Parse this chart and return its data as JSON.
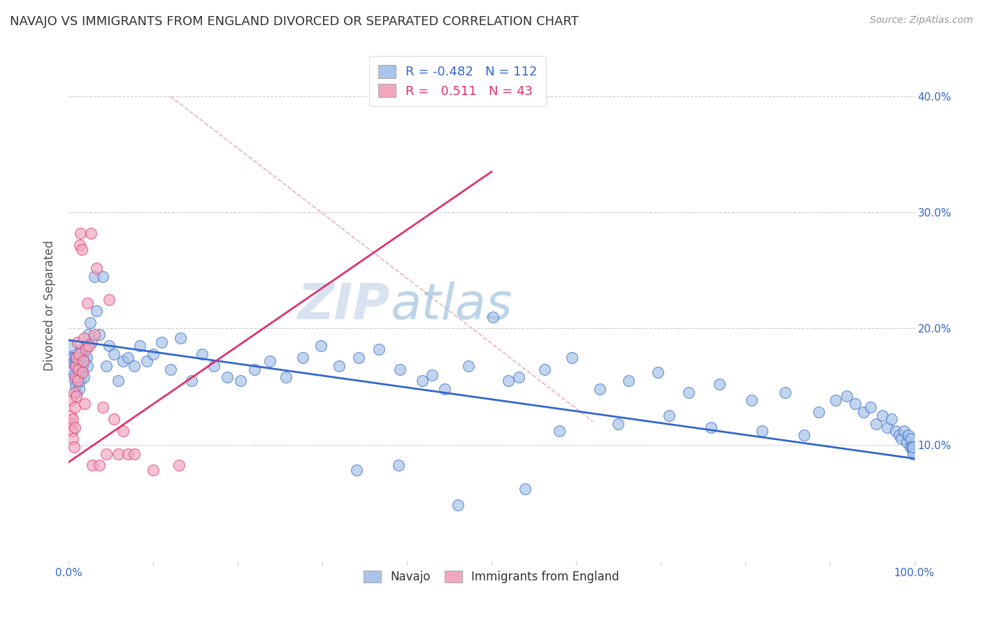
{
  "title": "NAVAJO VS IMMIGRANTS FROM ENGLAND DIVORCED OR SEPARATED CORRELATION CHART",
  "source": "Source: ZipAtlas.com",
  "ylabel": "Divorced or Separated",
  "ytick_labels": [
    "10.0%",
    "20.0%",
    "30.0%",
    "40.0%"
  ],
  "ytick_values": [
    0.1,
    0.2,
    0.3,
    0.4
  ],
  "xlim": [
    0.0,
    1.0
  ],
  "ylim": [
    0.0,
    0.44
  ],
  "navajo_color": "#a8c4e8",
  "england_color": "#f0a8bc",
  "navajo_line_color": "#3366cc",
  "england_line_color": "#e03070",
  "diagonal_line_color": "#cccccc",
  "background_color": "#ffffff",
  "navajo_line_x": [
    0.0,
    1.0
  ],
  "navajo_line_y": [
    0.19,
    0.088
  ],
  "england_line_x": [
    0.0,
    0.5
  ],
  "england_line_y": [
    0.085,
    0.335
  ],
  "diagonal_line_x": [
    0.12,
    0.62
  ],
  "diagonal_line_y": [
    0.4,
    0.12
  ],
  "navajo_scatter_x": [
    0.002,
    0.003,
    0.004,
    0.005,
    0.005,
    0.006,
    0.007,
    0.007,
    0.008,
    0.008,
    0.009,
    0.009,
    0.01,
    0.01,
    0.011,
    0.011,
    0.012,
    0.012,
    0.013,
    0.013,
    0.014,
    0.015,
    0.015,
    0.016,
    0.017,
    0.018,
    0.019,
    0.02,
    0.021,
    0.022,
    0.023,
    0.025,
    0.027,
    0.03,
    0.033,
    0.036,
    0.04,
    0.044,
    0.048,
    0.053,
    0.058,
    0.064,
    0.07,
    0.077,
    0.084,
    0.092,
    0.1,
    0.11,
    0.12,
    0.132,
    0.145,
    0.158,
    0.172,
    0.187,
    0.203,
    0.22,
    0.238,
    0.257,
    0.277,
    0.298,
    0.32,
    0.343,
    0.367,
    0.392,
    0.418,
    0.445,
    0.473,
    0.502,
    0.532,
    0.563,
    0.595,
    0.628,
    0.662,
    0.697,
    0.733,
    0.77,
    0.808,
    0.847,
    0.887,
    0.907,
    0.92,
    0.93,
    0.94,
    0.948,
    0.955,
    0.962,
    0.968,
    0.973,
    0.978,
    0.982,
    0.985,
    0.988,
    0.991,
    0.993,
    0.995,
    0.996,
    0.997,
    0.998,
    0.999,
    0.999,
    0.43,
    0.52,
    0.58,
    0.65,
    0.71,
    0.76,
    0.82,
    0.87,
    0.34,
    0.39,
    0.46,
    0.54
  ],
  "navajo_scatter_y": [
    0.185,
    0.175,
    0.165,
    0.175,
    0.17,
    0.16,
    0.155,
    0.17,
    0.15,
    0.175,
    0.145,
    0.168,
    0.155,
    0.172,
    0.158,
    0.165,
    0.175,
    0.148,
    0.162,
    0.178,
    0.155,
    0.165,
    0.182,
    0.168,
    0.175,
    0.158,
    0.172,
    0.185,
    0.175,
    0.168,
    0.195,
    0.205,
    0.188,
    0.245,
    0.215,
    0.195,
    0.245,
    0.168,
    0.185,
    0.178,
    0.155,
    0.172,
    0.175,
    0.168,
    0.185,
    0.172,
    0.178,
    0.188,
    0.165,
    0.192,
    0.155,
    0.178,
    0.168,
    0.158,
    0.155,
    0.165,
    0.172,
    0.158,
    0.175,
    0.185,
    0.168,
    0.175,
    0.182,
    0.165,
    0.155,
    0.148,
    0.168,
    0.21,
    0.158,
    0.165,
    0.175,
    0.148,
    0.155,
    0.162,
    0.145,
    0.152,
    0.138,
    0.145,
    0.128,
    0.138,
    0.142,
    0.135,
    0.128,
    0.132,
    0.118,
    0.125,
    0.115,
    0.122,
    0.112,
    0.108,
    0.105,
    0.112,
    0.102,
    0.108,
    0.098,
    0.105,
    0.098,
    0.095,
    0.092,
    0.098,
    0.16,
    0.155,
    0.112,
    0.118,
    0.125,
    0.115,
    0.112,
    0.108,
    0.078,
    0.082,
    0.048,
    0.062
  ],
  "england_scatter_x": [
    0.002,
    0.003,
    0.003,
    0.004,
    0.005,
    0.005,
    0.006,
    0.006,
    0.007,
    0.007,
    0.008,
    0.008,
    0.009,
    0.009,
    0.01,
    0.01,
    0.011,
    0.012,
    0.013,
    0.014,
    0.015,
    0.016,
    0.017,
    0.018,
    0.019,
    0.02,
    0.022,
    0.024,
    0.026,
    0.028,
    0.03,
    0.033,
    0.036,
    0.04,
    0.044,
    0.048,
    0.053,
    0.058,
    0.064,
    0.07,
    0.077,
    0.1,
    0.13
  ],
  "england_scatter_y": [
    0.125,
    0.118,
    0.138,
    0.112,
    0.105,
    0.122,
    0.098,
    0.145,
    0.115,
    0.132,
    0.158,
    0.168,
    0.142,
    0.175,
    0.155,
    0.188,
    0.165,
    0.178,
    0.272,
    0.282,
    0.268,
    0.162,
    0.172,
    0.192,
    0.135,
    0.182,
    0.222,
    0.185,
    0.282,
    0.082,
    0.195,
    0.252,
    0.082,
    0.132,
    0.092,
    0.225,
    0.122,
    0.092,
    0.112,
    0.092,
    0.092,
    0.078,
    0.082
  ],
  "legend_top_labels": [
    "R = -0.482   N = 112",
    "R =   0.511   N = 43"
  ],
  "legend_bottom_labels": [
    "Navajo",
    "Immigrants from England"
  ]
}
